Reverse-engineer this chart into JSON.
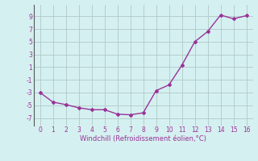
{
  "x": [
    0,
    1,
    2,
    3,
    4,
    5,
    6,
    7,
    8,
    9,
    10,
    11,
    12,
    13,
    14,
    15,
    16
  ],
  "y": [
    -3,
    -4.5,
    -4.9,
    -5.4,
    -5.7,
    -5.7,
    -6.4,
    -6.5,
    -6.2,
    -2.7,
    -1.8,
    1.3,
    5.0,
    6.6,
    9.2,
    8.6,
    9.1
  ],
  "line_color": "#993399",
  "marker": "D",
  "marker_size": 2,
  "bg_color": "#d5f0f0",
  "grid_color": "#b0c8c8",
  "xlabel": "Windchill (Refroidissement éolien,°C)",
  "xlabel_color": "#993399",
  "ylabel_ticks": [
    -7,
    -5,
    -3,
    -1,
    1,
    3,
    5,
    7,
    9
  ],
  "xtick_labels": [
    "0",
    "1",
    "2",
    "3",
    "4",
    "5",
    "6",
    "7",
    "8",
    "9",
    "10",
    "11",
    "12",
    "13",
    "14",
    "15",
    "16"
  ],
  "xlim": [
    -0.5,
    16.5
  ],
  "ylim": [
    -8.2,
    10.8
  ],
  "line_width": 1.0,
  "tick_fontsize": 5.5,
  "xlabel_fontsize": 6.0
}
